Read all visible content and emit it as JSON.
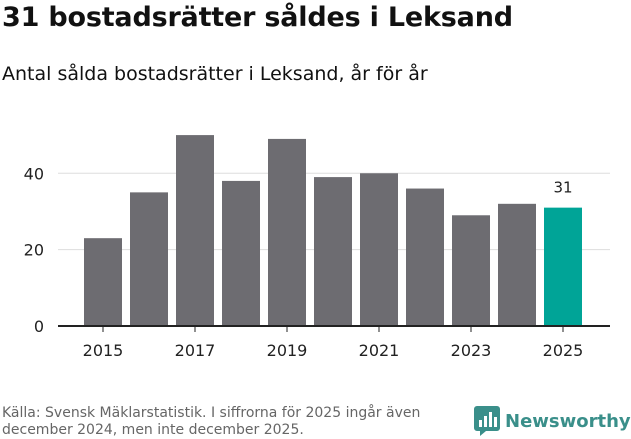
{
  "header": {
    "title": "31 bostadsrätter såldes i Leksand",
    "subtitle": "Antal sålda bostadsrätter i Leksand, år för år"
  },
  "chart_data": {
    "type": "bar",
    "title": "31 bostadsrätter såldes i Leksand",
    "subtitle": "Antal sålda bostadsrätter i Leksand, år för år",
    "xlabel": "",
    "ylabel": "",
    "categories": [
      "2015",
      "2016",
      "2017",
      "2018",
      "2019",
      "2020",
      "2021",
      "2022",
      "2023",
      "2024",
      "2025"
    ],
    "values": [
      23,
      35,
      50,
      38,
      49,
      39,
      40,
      36,
      29,
      32,
      31
    ],
    "x_tick_labels": [
      "2015",
      "2017",
      "2019",
      "2021",
      "2023",
      "2025"
    ],
    "y_ticks": [
      0,
      20,
      40
    ],
    "ylim": [
      0,
      55
    ],
    "grid": true,
    "highlight_index": 10,
    "data_labels": [
      {
        "index": 10,
        "text": "31"
      }
    ],
    "colors": {
      "bar": "#6d6c71",
      "highlight": "#00a497",
      "grid": "#dddddd",
      "axis": "#222222"
    }
  },
  "footer": {
    "source": "Källa: Svensk Mäklarstatistik. I siffrorna för 2025 ingår även december 2024, men inte december 2025.",
    "logo_text": "Newsworthy",
    "logo_icon": "newsworthy-logo-icon",
    "brand_color": "#3a8f8a"
  }
}
